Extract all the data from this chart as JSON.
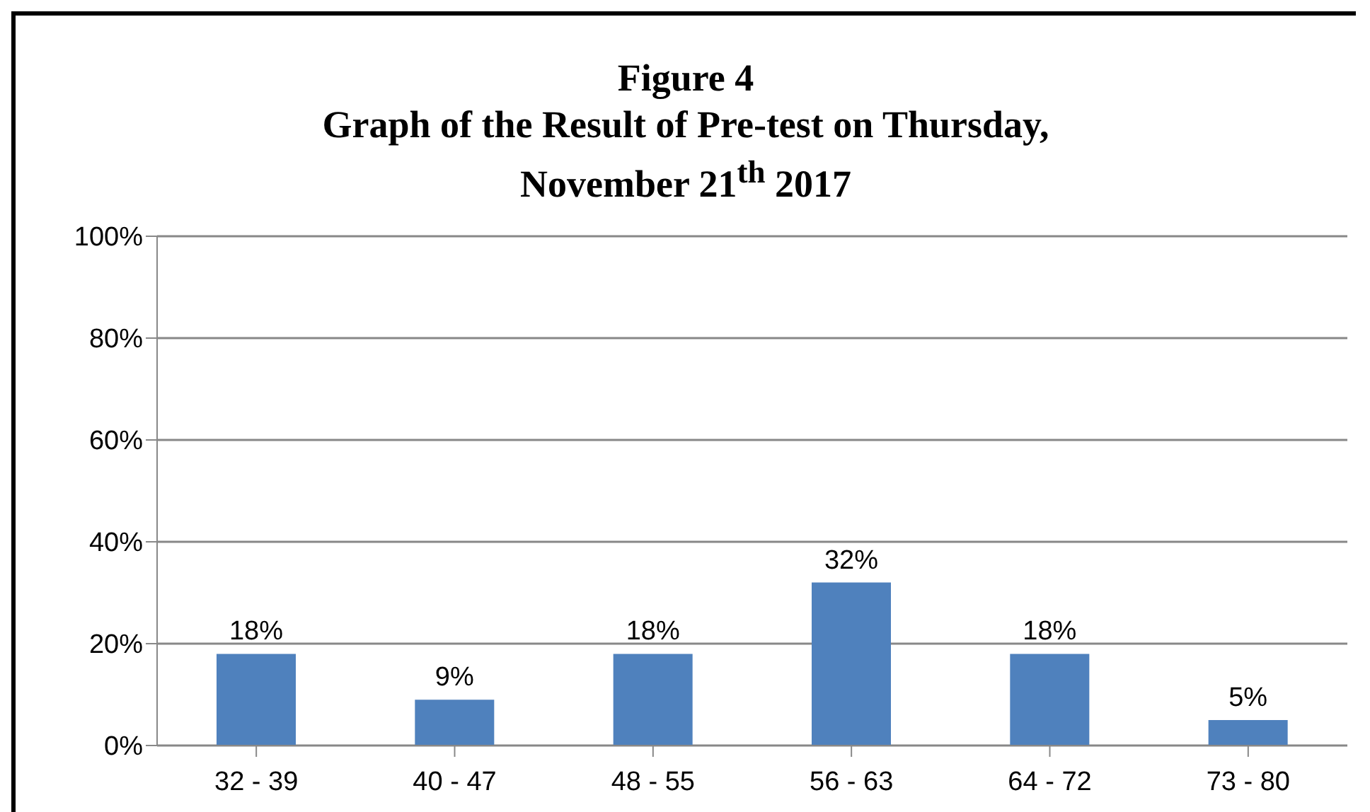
{
  "chart_data": {
    "type": "bar",
    "title": "Figure 4\nGraph  of the Result of Pre-test on Thursday,\nNovember 21$^{th}$  2017",
    "categories": [
      "32 - 39",
      "40 - 47",
      "48 - 55",
      "56 - 63",
      "64 - 72",
      "73 - 80"
    ],
    "values": [
      18,
      9,
      18,
      32,
      18,
      5
    ],
    "value_labels": [
      "18%",
      "9%",
      "18%",
      "32%",
      "18%",
      "5%"
    ],
    "color": "#4f81bd",
    "ylim": [
      0,
      100
    ],
    "yticks": [
      {
        "value": 0,
        "label": "0%"
      },
      {
        "value": 20,
        "label": "20%"
      },
      {
        "value": 40,
        "label": "40%"
      },
      {
        "value": 60,
        "label": "60%"
      },
      {
        "value": 80,
        "label": "80%"
      },
      {
        "value": 100,
        "label": "100%"
      }
    ],
    "grid": "y",
    "legend": false
  }
}
